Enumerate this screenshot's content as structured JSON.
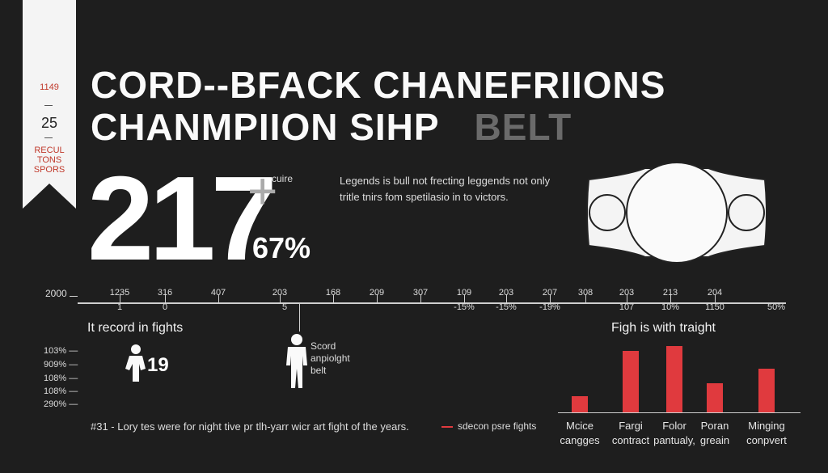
{
  "ribbon": {
    "top": "1149",
    "number": "25",
    "label_lines": [
      "RECUL",
      "TONS",
      "SPORS"
    ]
  },
  "title": {
    "line1": "CORD--BFACK CHANEFRIIONS",
    "line2_main": "CHANMPIION SIHP",
    "line2_dim": "BELT"
  },
  "hero": {
    "number": "217",
    "plus": "+",
    "suffix": "cuire",
    "percent": "67%"
  },
  "description": {
    "line1": "Legends is bull not frecting leggends not only",
    "line2": "tritle tnirs fom spetilasio in to victors."
  },
  "timeline": {
    "left_label": "2000",
    "top_labels": [
      "1235",
      "316",
      "407",
      "203",
      "168",
      "209",
      "307",
      "109",
      "203",
      "207",
      "308",
      "203",
      "213",
      "204"
    ],
    "bottom_labels": [
      "1",
      "0",
      "",
      "5",
      "",
      "",
      "",
      "-15%",
      "-15%",
      "-19%",
      "",
      "107",
      "10%",
      "1150",
      "50%"
    ]
  },
  "left_section": {
    "heading": "It record in fights",
    "y_labels": [
      "103% —",
      "909% —",
      "108% —",
      "108% —",
      "290% —"
    ],
    "figure_number": "19",
    "figure_label_lines": [
      "Scord",
      "anpiolght",
      "belt"
    ]
  },
  "chart_data": {
    "type": "bar",
    "title": "Figh is with traight",
    "categories": [
      "Mcice cangges",
      "Fargi contract",
      "Folor pantualy,",
      "Poran greain",
      "Minging conpvert"
    ],
    "values": [
      18,
      68,
      73,
      32,
      48
    ],
    "ylim": [
      0,
      80
    ],
    "color": "#e03a3e"
  },
  "footer": {
    "note": "#31 - Lory tes were for night tive pr tlh-yarr wicr art fight of the years.",
    "legend": "sdecon psre fights"
  },
  "colors": {
    "accent": "#e03a3e",
    "background": "#1e1e1e"
  }
}
